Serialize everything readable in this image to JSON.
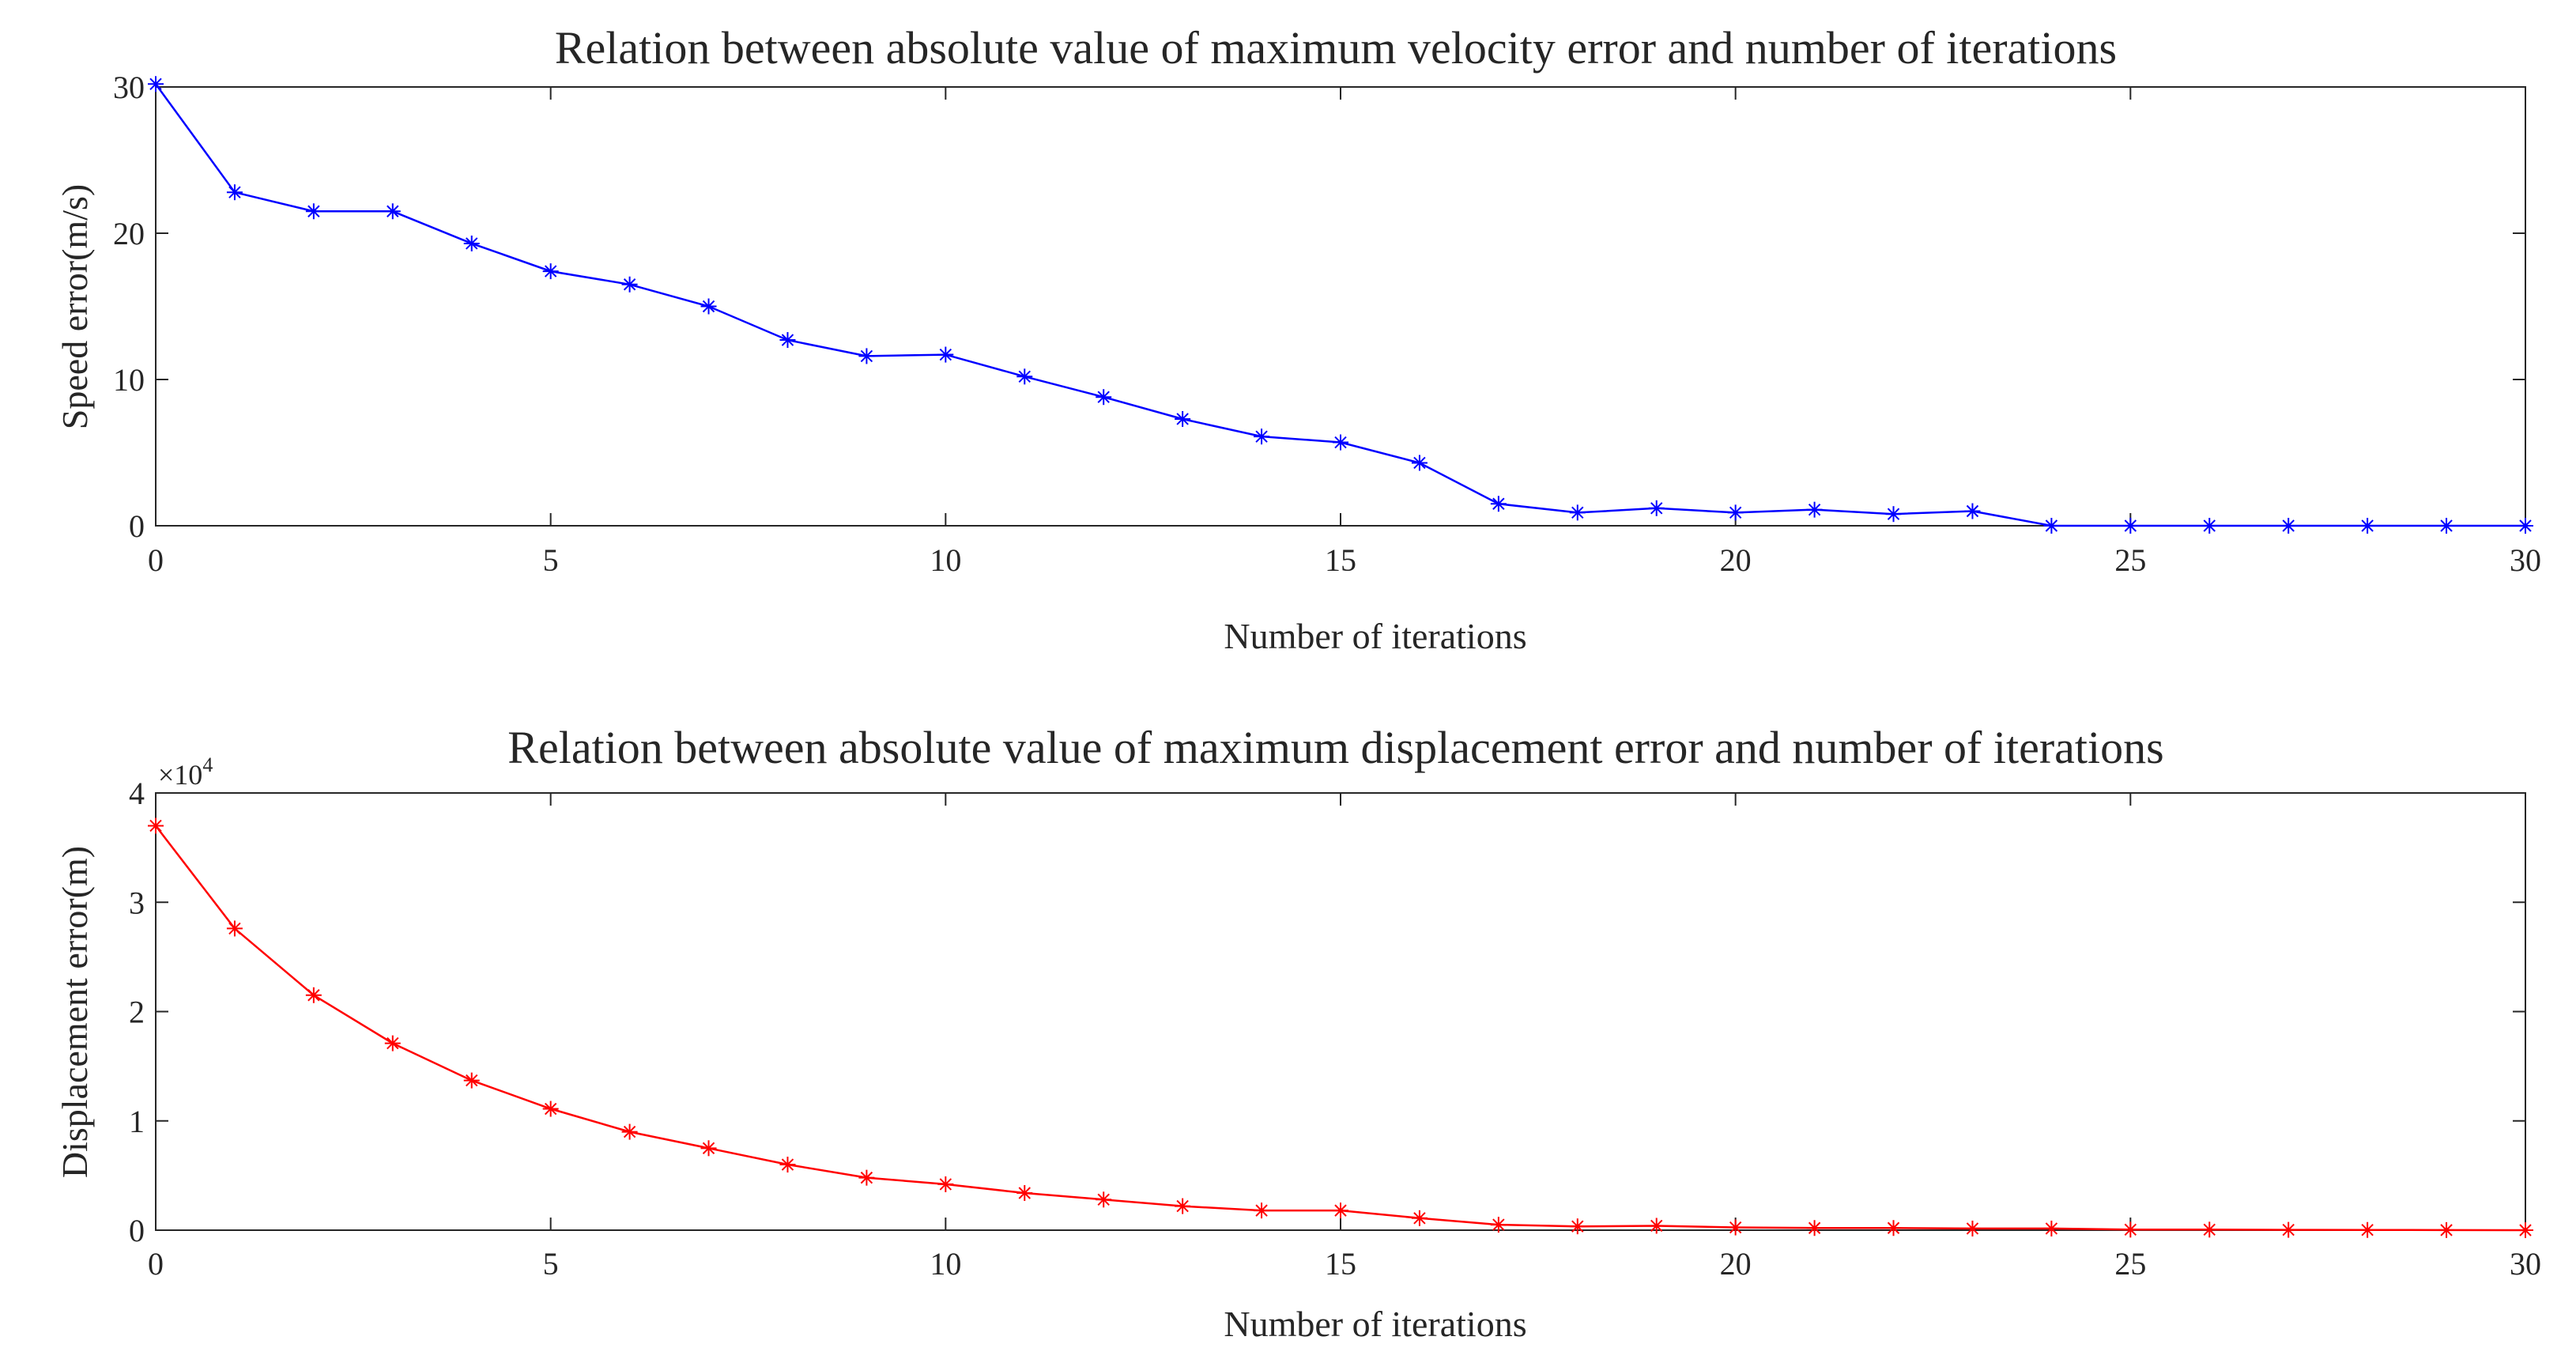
{
  "chart_data": [
    {
      "type": "line",
      "title": "Relation between absolute value of maximum velocity error and number of iterations",
      "xlabel": "Number of iterations",
      "ylabel": "Speed error(m/s)",
      "xlim": [
        0,
        30
      ],
      "ylim": [
        0,
        30
      ],
      "xticks": [
        0,
        5,
        10,
        15,
        20,
        25,
        30
      ],
      "yticks": [
        0,
        10,
        20,
        30
      ],
      "xtick_labels": [
        "0",
        "5",
        "10",
        "15",
        "20",
        "25",
        "30"
      ],
      "ytick_labels": [
        "0",
        "10",
        "20",
        "30"
      ],
      "grid": false,
      "series": [
        {
          "name": "Speed error",
          "color": "#0000ff",
          "marker": "asterisk",
          "x": [
            0,
            1,
            2,
            3,
            4,
            5,
            6,
            7,
            8,
            9,
            10,
            11,
            12,
            13,
            14,
            15,
            16,
            17,
            18,
            19,
            20,
            21,
            22,
            23,
            24,
            25,
            26,
            27,
            28,
            29,
            30
          ],
          "values": [
            30.2,
            22.8,
            21.5,
            21.5,
            19.3,
            17.4,
            16.5,
            15.0,
            12.7,
            11.6,
            11.7,
            10.2,
            8.8,
            7.3,
            6.1,
            5.7,
            4.3,
            1.5,
            0.9,
            1.2,
            0.9,
            1.1,
            0.8,
            1.0,
            0,
            0,
            0,
            0,
            0,
            0,
            0
          ]
        }
      ]
    },
    {
      "type": "line",
      "title": "Relation between absolute value of maximum displacement error and number of iterations",
      "xlabel": "Number of iterations",
      "ylabel": "Displacement error(m)",
      "xlim": [
        0,
        30
      ],
      "ylim": [
        0,
        40000
      ],
      "xticks": [
        0,
        5,
        10,
        15,
        20,
        25,
        30
      ],
      "yticks": [
        0,
        10000,
        20000,
        30000,
        40000
      ],
      "xtick_labels": [
        "0",
        "5",
        "10",
        "15",
        "20",
        "25",
        "30"
      ],
      "ytick_labels": [
        "0",
        "1",
        "2",
        "3",
        "4"
      ],
      "y_exponent_base": "×10",
      "y_exponent_power": "4",
      "grid": false,
      "series": [
        {
          "name": "Displacement error",
          "color": "#ff0000",
          "marker": "asterisk",
          "x": [
            0,
            1,
            2,
            3,
            4,
            5,
            6,
            7,
            8,
            9,
            10,
            11,
            12,
            13,
            14,
            15,
            16,
            17,
            18,
            19,
            20,
            21,
            22,
            23,
            24,
            25,
            26,
            27,
            28,
            29,
            30
          ],
          "values": [
            37000,
            27600,
            21500,
            17100,
            13700,
            11100,
            9000,
            7500,
            6000,
            4800,
            4200,
            3400,
            2800,
            2200,
            1800,
            1800,
            1100,
            500,
            350,
            400,
            250,
            200,
            200,
            150,
            150,
            50,
            50,
            30,
            20,
            10,
            0
          ]
        }
      ]
    }
  ]
}
